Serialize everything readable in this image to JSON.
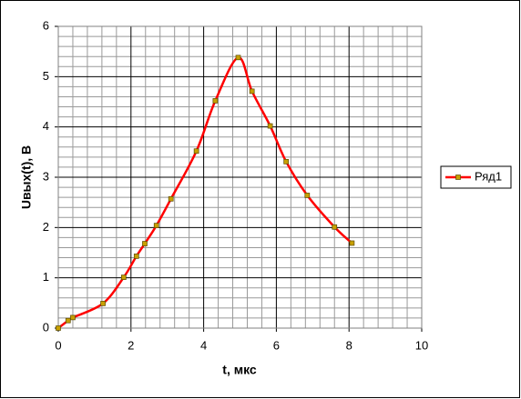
{
  "chart_data": {
    "type": "line",
    "x_label": "t, мкс",
    "y_label": "Uвых(t), B",
    "series": [
      {
        "name": "Ряд1",
        "color": "#ff0000",
        "marker_color": "#c8a000",
        "x": [
          0,
          0.27,
          0.4,
          1.23,
          1.8,
          2.15,
          2.38,
          2.7,
          3.1,
          3.8,
          4.32,
          4.95,
          5.33,
          5.83,
          6.27,
          6.85,
          7.6,
          8.08
        ],
        "values": [
          0,
          0.15,
          0.21,
          0.49,
          1.01,
          1.43,
          1.68,
          2.04,
          2.57,
          3.52,
          4.52,
          5.38,
          4.71,
          4.02,
          3.31,
          2.64,
          2.01,
          1.69
        ]
      }
    ],
    "xlim": [
      0,
      10
    ],
    "xticks": [
      0,
      2,
      4,
      6,
      8,
      10
    ],
    "ylim": [
      0,
      6
    ],
    "yticks": [
      0,
      1,
      2,
      3,
      4,
      5,
      6
    ],
    "grid": true,
    "minor_grid": true,
    "smooth": true,
    "legend": "right"
  }
}
